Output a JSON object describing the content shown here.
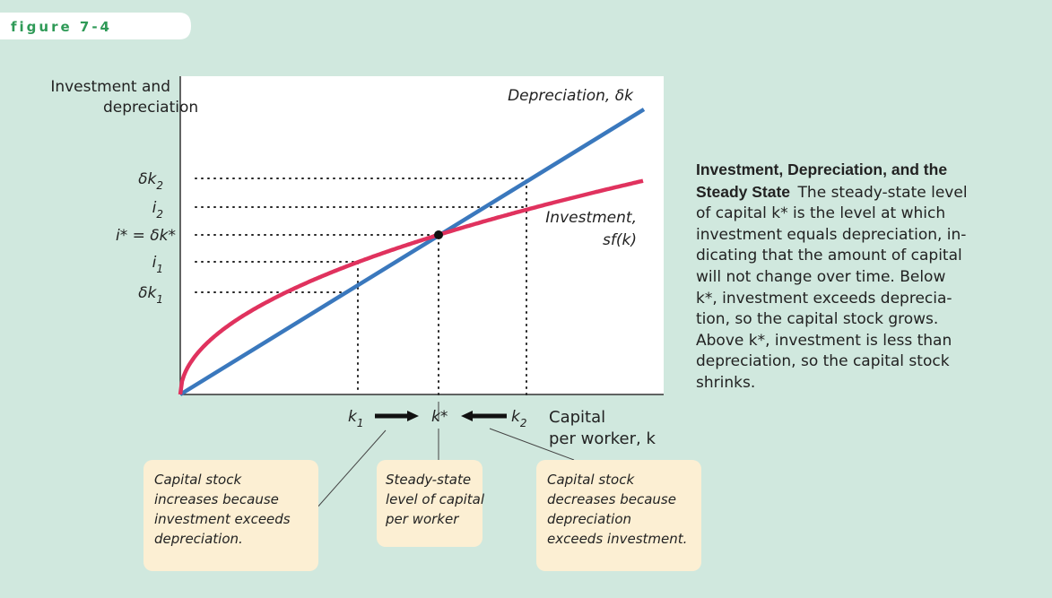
{
  "figure_label": "figure 7-4",
  "y_axis_label": [
    "Investment and",
    "depreciation"
  ],
  "y_labels": [
    {
      "main": "δk",
      "sub": "2"
    },
    {
      "main": "i",
      "sub": "2"
    },
    {
      "main": "i* = δk*"
    },
    {
      "main": "i",
      "sub": "1"
    },
    {
      "main": "δk",
      "sub": "1"
    }
  ],
  "curve_labels": {
    "depreciation": "Depreciation, δk",
    "investment": [
      "Investment,",
      "sf(k)"
    ]
  },
  "x_labels": [
    {
      "main": "k",
      "sub": "1"
    },
    {
      "main": "k*"
    },
    {
      "main": "k",
      "sub": "2"
    }
  ],
  "x_axis_label": [
    "Capital",
    "per worker, k"
  ],
  "boxes": [
    [
      "Capital stock",
      "increases because",
      "investment exceeds",
      "depreciation."
    ],
    [
      "Steady-state",
      "level of capital",
      "per worker"
    ],
    [
      "Capital stock",
      "decreases because",
      "depreciation",
      "exceeds investment."
    ]
  ],
  "caption": {
    "title": [
      "Investment, Depreciation, and the",
      "Steady State"
    ],
    "body": [
      "The steady-state level",
      "of capital k* is the level at which",
      "investment equals depreciation, in-",
      "dicating that the amount of capital",
      "will not change over time. Below",
      "k*, investment exceeds deprecia-",
      "tion, so the capital stock grows.",
      "Above k*, investment is less than",
      "depreciation, so the capital stock",
      "shrinks."
    ]
  }
}
